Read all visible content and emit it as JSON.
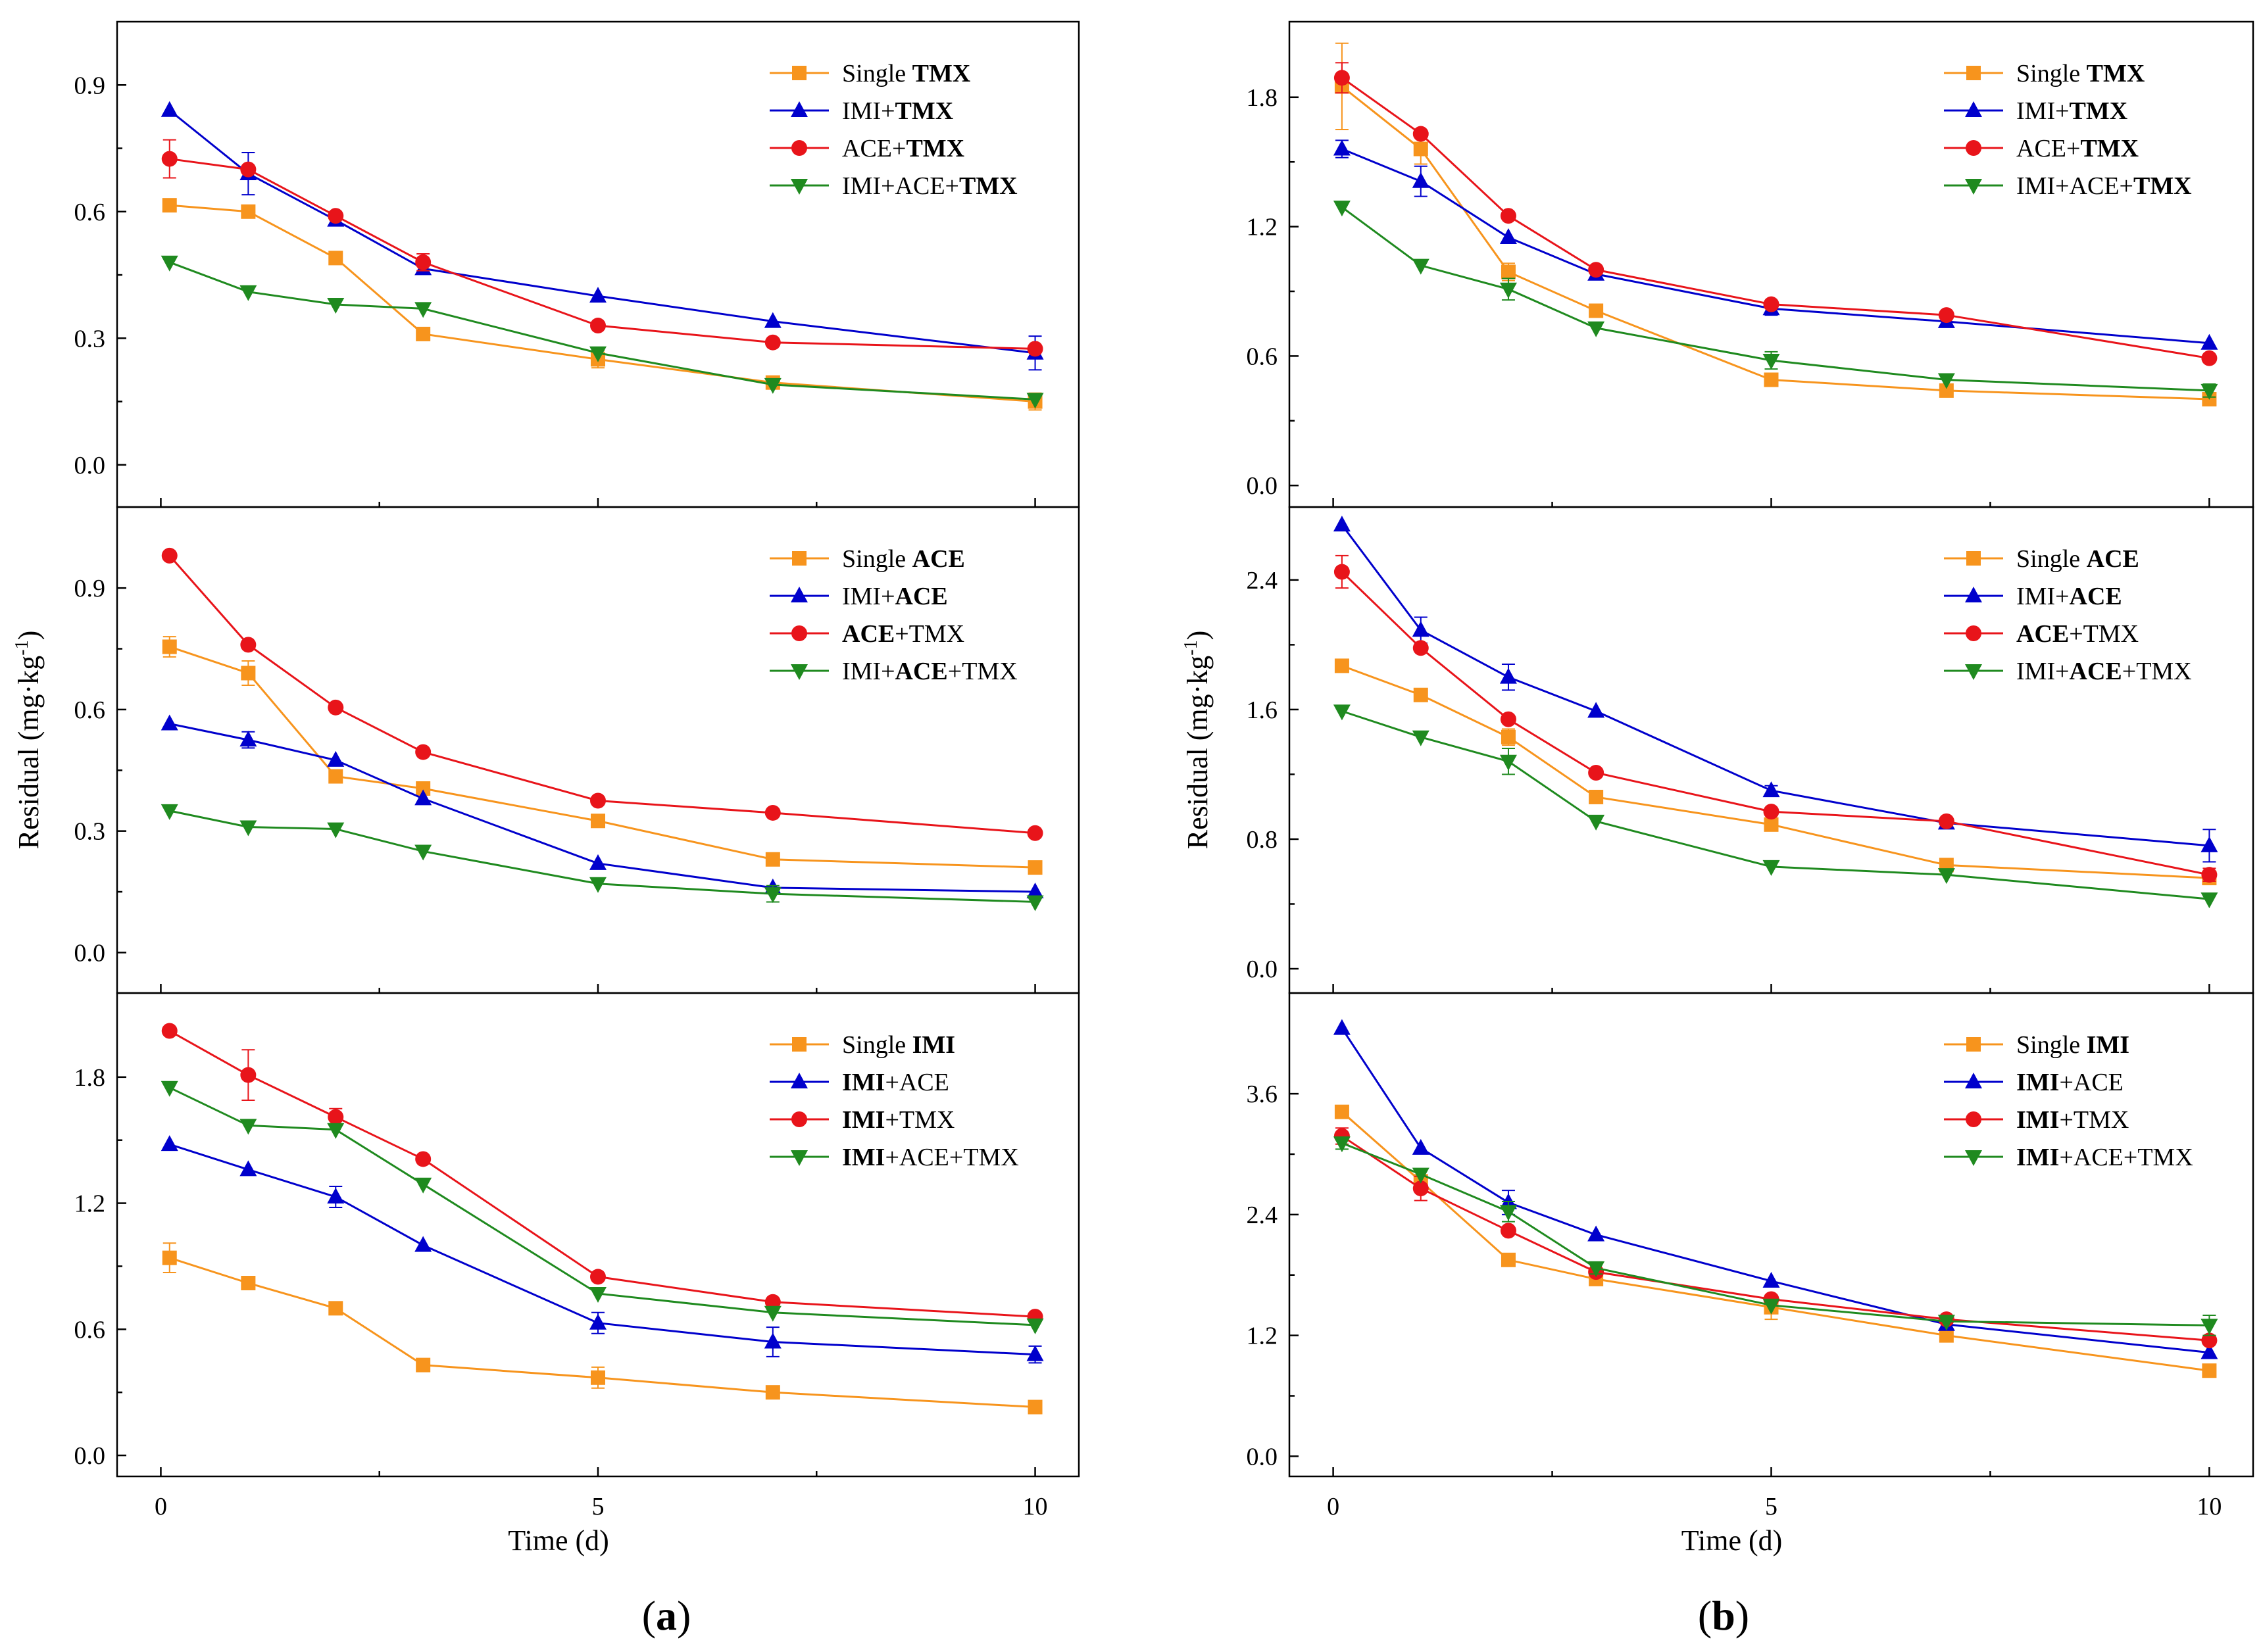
{
  "figure_labels": {
    "a": "a",
    "b": "b",
    "paren_open": "(",
    "paren_close": ")"
  },
  "chart_data": [
    {
      "type": "line",
      "id": "a-top",
      "column": "a",
      "row": 0,
      "xlabel": "",
      "ylabel": "",
      "xlim": [
        -0.5,
        10.5
      ],
      "xticks": [
        0,
        5,
        10
      ],
      "ylim": [
        -0.1,
        1.05
      ],
      "yticks": [
        "0.0",
        "0.3",
        "0.6",
        "0.9"
      ],
      "legend_position": "top-right",
      "x": [
        0.1,
        1,
        2,
        3,
        5,
        7,
        10
      ],
      "series": [
        {
          "name": "Single TMX",
          "legend": [
            [
              "Single ",
              false
            ],
            [
              "TMX",
              true
            ]
          ],
          "color": "#f7941d",
          "marker": "square",
          "values": [
            0.615,
            0.6,
            0.49,
            0.31,
            0.25,
            0.195,
            0.15
          ],
          "errors": [
            0,
            0,
            0,
            0,
            0.02,
            0.01,
            0.02
          ]
        },
        {
          "name": "IMI+TMX",
          "legend": [
            [
              "IMI+",
              false
            ],
            [
              "TMX",
              true
            ]
          ],
          "color": "#0000cc",
          "marker": "triangle-up",
          "values": [
            0.84,
            0.69,
            0.58,
            0.465,
            0.4,
            0.34,
            0.265
          ],
          "errors": [
            0,
            0.05,
            0,
            0,
            0,
            0,
            0.04
          ]
        },
        {
          "name": "ACE+TMX",
          "legend": [
            [
              "ACE+",
              false
            ],
            [
              "TMX",
              true
            ]
          ],
          "color": "#e8141a",
          "marker": "circle",
          "values": [
            0.725,
            0.7,
            0.59,
            0.48,
            0.33,
            0.29,
            0.275
          ],
          "errors": [
            0.045,
            0,
            0,
            0.02,
            0,
            0,
            0
          ]
        },
        {
          "name": "IMI+ACE+TMX",
          "legend": [
            [
              "IMI+ACE+",
              false
            ],
            [
              "TMX",
              true
            ]
          ],
          "color": "#1f8a1f",
          "marker": "triangle-down",
          "values": [
            0.48,
            0.41,
            0.38,
            0.37,
            0.265,
            0.19,
            0.155
          ],
          "errors": [
            0,
            0,
            0,
            0,
            0,
            0,
            0
          ]
        }
      ]
    },
    {
      "type": "line",
      "id": "a-mid",
      "column": "a",
      "row": 1,
      "xlabel": "",
      "ylabel": "",
      "xlim": [
        -0.5,
        10.5
      ],
      "xticks": [
        0,
        5,
        10
      ],
      "ylim": [
        -0.1,
        1.1
      ],
      "yticks": [
        "0.0",
        "0.3",
        "0.6",
        "0.9"
      ],
      "legend_position": "top-right",
      "x": [
        0.1,
        1,
        2,
        3,
        5,
        7,
        10
      ],
      "series": [
        {
          "name": "Single ACE",
          "legend": [
            [
              "Single ",
              false
            ],
            [
              "ACE",
              true
            ]
          ],
          "color": "#f7941d",
          "marker": "square",
          "values": [
            0.755,
            0.69,
            0.435,
            0.405,
            0.325,
            0.23,
            0.21
          ],
          "errors": [
            0.025,
            0.03,
            0,
            0,
            0,
            0,
            0
          ]
        },
        {
          "name": "IMI+ACE",
          "legend": [
            [
              "IMI+",
              false
            ],
            [
              "ACE",
              true
            ]
          ],
          "color": "#0000cc",
          "marker": "triangle-up",
          "values": [
            0.565,
            0.525,
            0.475,
            0.38,
            0.22,
            0.16,
            0.15
          ],
          "errors": [
            0,
            0.02,
            0,
            0,
            0,
            0,
            0
          ]
        },
        {
          "name": "ACE+TMX",
          "legend": [
            [
              "ACE",
              true
            ],
            [
              "+TMX",
              false
            ]
          ],
          "color": "#e8141a",
          "marker": "circle",
          "values": [
            0.98,
            0.76,
            0.605,
            0.495,
            0.375,
            0.345,
            0.295
          ],
          "errors": [
            0,
            0,
            0,
            0,
            0,
            0,
            0
          ]
        },
        {
          "name": "IMI+ACE+TMX",
          "legend": [
            [
              "IMI+",
              false
            ],
            [
              "ACE",
              true
            ],
            [
              "+TMX",
              false
            ]
          ],
          "color": "#1f8a1f",
          "marker": "triangle-down",
          "values": [
            0.35,
            0.31,
            0.305,
            0.25,
            0.17,
            0.145,
            0.125
          ],
          "errors": [
            0,
            0,
            0,
            0,
            0,
            0.02,
            0
          ]
        }
      ]
    },
    {
      "type": "line",
      "id": "a-bot",
      "column": "a",
      "row": 2,
      "xlabel": "Time (d)",
      "ylabel": "",
      "xlim": [
        -0.5,
        10.5
      ],
      "xticks": [
        0,
        5,
        10
      ],
      "ylim": [
        -0.1,
        2.2
      ],
      "yticks": [
        "0.0",
        "0.6",
        "1.2",
        "1.8"
      ],
      "legend_position": "top-right",
      "x": [
        0.1,
        1,
        2,
        3,
        5,
        7,
        10
      ],
      "series": [
        {
          "name": "Single IMI",
          "legend": [
            [
              "Single ",
              false
            ],
            [
              "IMI",
              true
            ]
          ],
          "color": "#f7941d",
          "marker": "square",
          "values": [
            0.94,
            0.82,
            0.7,
            0.43,
            0.37,
            0.3,
            0.23
          ],
          "errors": [
            0.07,
            0,
            0,
            0,
            0.05,
            0,
            0
          ]
        },
        {
          "name": "IMI+ACE",
          "legend": [
            [
              "IMI",
              true
            ],
            [
              "+ACE",
              false
            ]
          ],
          "color": "#0000cc",
          "marker": "triangle-up",
          "values": [
            1.48,
            1.36,
            1.23,
            1.0,
            0.63,
            0.54,
            0.48
          ],
          "errors": [
            0,
            0,
            0.05,
            0,
            0.05,
            0.07,
            0.04
          ]
        },
        {
          "name": "IMI+TMX",
          "legend": [
            [
              "IMI",
              true
            ],
            [
              "+TMX",
              false
            ]
          ],
          "color": "#e8141a",
          "marker": "circle",
          "values": [
            2.02,
            1.81,
            1.61,
            1.41,
            0.85,
            0.73,
            0.66
          ],
          "errors": [
            0,
            0.12,
            0.04,
            0,
            0,
            0,
            0
          ]
        },
        {
          "name": "IMI+ACE+TMX",
          "legend": [
            [
              "IMI",
              true
            ],
            [
              "+ACE+TMX",
              false
            ]
          ],
          "color": "#1f8a1f",
          "marker": "triangle-down",
          "values": [
            1.75,
            1.57,
            1.55,
            1.29,
            0.77,
            0.68,
            0.62
          ],
          "errors": [
            0,
            0,
            0,
            0,
            0,
            0,
            0
          ]
        }
      ]
    },
    {
      "type": "line",
      "id": "b-top",
      "column": "b",
      "row": 0,
      "xlabel": "",
      "ylabel": "",
      "xlim": [
        -0.5,
        10.5
      ],
      "xticks": [
        0,
        5,
        10
      ],
      "ylim": [
        -0.1,
        2.15
      ],
      "yticks": [
        "0.0",
        "0.6",
        "1.2",
        "1.8"
      ],
      "legend_position": "top-right",
      "x": [
        0.1,
        1,
        2,
        3,
        5,
        7,
        10
      ],
      "series": [
        {
          "name": "Single TMX",
          "legend": [
            [
              "Single ",
              false
            ],
            [
              "TMX",
              true
            ]
          ],
          "color": "#f7941d",
          "marker": "square",
          "values": [
            1.85,
            1.56,
            0.99,
            0.81,
            0.49,
            0.44,
            0.4
          ],
          "errors": [
            0.2,
            0.07,
            0.04,
            0,
            0,
            0,
            0
          ]
        },
        {
          "name": "IMI+TMX",
          "legend": [
            [
              "IMI+",
              false
            ],
            [
              "TMX",
              true
            ]
          ],
          "color": "#0000cc",
          "marker": "triangle-up",
          "values": [
            1.56,
            1.41,
            1.15,
            0.98,
            0.82,
            0.76,
            0.66
          ],
          "errors": [
            0.04,
            0.07,
            0,
            0,
            0.03,
            0,
            0
          ]
        },
        {
          "name": "ACE+TMX",
          "legend": [
            [
              "ACE+",
              false
            ],
            [
              "TMX",
              true
            ]
          ],
          "color": "#e8141a",
          "marker": "circle",
          "values": [
            1.89,
            1.63,
            1.25,
            1.0,
            0.84,
            0.79,
            0.59
          ],
          "errors": [
            0.07,
            0,
            0,
            0,
            0,
            0,
            0
          ]
        },
        {
          "name": "IMI+ACE+TMX",
          "legend": [
            [
              "IMI+ACE+",
              false
            ],
            [
              "TMX",
              true
            ]
          ],
          "color": "#1f8a1f",
          "marker": "triangle-down",
          "values": [
            1.29,
            1.02,
            0.91,
            0.73,
            0.58,
            0.49,
            0.44
          ],
          "errors": [
            0,
            0,
            0.05,
            0,
            0.04,
            0,
            0.03
          ]
        }
      ]
    },
    {
      "type": "line",
      "id": "b-mid",
      "column": "b",
      "row": 1,
      "xlabel": "",
      "ylabel": "",
      "xlim": [
        -0.5,
        10.5
      ],
      "xticks": [
        0,
        5,
        10
      ],
      "ylim": [
        -0.15,
        2.85
      ],
      "yticks": [
        "0.0",
        "0.8",
        "1.6",
        "2.4"
      ],
      "legend_position": "top-right",
      "x": [
        0.1,
        1,
        2,
        3,
        5,
        7,
        10
      ],
      "series": [
        {
          "name": "Single ACE",
          "legend": [
            [
              "Single ",
              false
            ],
            [
              "ACE",
              true
            ]
          ],
          "color": "#f7941d",
          "marker": "square",
          "values": [
            1.87,
            1.69,
            1.43,
            1.06,
            0.89,
            0.64,
            0.56
          ],
          "errors": [
            0,
            0,
            0.05,
            0,
            0,
            0,
            0
          ]
        },
        {
          "name": "IMI+ACE",
          "legend": [
            [
              "IMI+",
              false
            ],
            [
              "ACE",
              true
            ]
          ],
          "color": "#0000cc",
          "marker": "triangle-up",
          "values": [
            2.74,
            2.09,
            1.8,
            1.59,
            1.1,
            0.9,
            0.76
          ],
          "errors": [
            0,
            0.08,
            0.08,
            0,
            0.03,
            0,
            0.1
          ]
        },
        {
          "name": "ACE+TMX",
          "legend": [
            [
              "ACE",
              true
            ],
            [
              "+TMX",
              false
            ]
          ],
          "color": "#e8141a",
          "marker": "circle",
          "values": [
            2.45,
            1.98,
            1.54,
            1.21,
            0.97,
            0.91,
            0.58
          ],
          "errors": [
            0.1,
            0,
            0,
            0,
            0,
            0,
            0.04
          ]
        },
        {
          "name": "IMI+ACE+TMX",
          "legend": [
            [
              "IMI+",
              false
            ],
            [
              "ACE",
              true
            ],
            [
              "+TMX",
              false
            ]
          ],
          "color": "#1f8a1f",
          "marker": "triangle-down",
          "values": [
            1.59,
            1.43,
            1.28,
            0.91,
            0.63,
            0.58,
            0.43
          ],
          "errors": [
            0,
            0,
            0.08,
            0,
            0,
            0,
            0
          ]
        }
      ]
    },
    {
      "type": "line",
      "id": "b-bot",
      "column": "b",
      "row": 2,
      "xlabel": "Time (d)",
      "ylabel": "",
      "xlim": [
        -0.5,
        10.5
      ],
      "xticks": [
        0,
        5,
        10
      ],
      "ylim": [
        -0.2,
        4.6
      ],
      "yticks": [
        "0.0",
        "1.2",
        "2.4",
        "3.6"
      ],
      "legend_position": "top-right",
      "x": [
        0.1,
        1,
        2,
        3,
        5,
        7,
        10
      ],
      "series": [
        {
          "name": "Single IMI",
          "legend": [
            [
              "Single ",
              false
            ],
            [
              "IMI",
              true
            ]
          ],
          "color": "#f7941d",
          "marker": "square",
          "values": [
            3.42,
            2.73,
            1.95,
            1.76,
            1.48,
            1.2,
            0.85
          ],
          "errors": [
            0,
            0,
            0,
            0,
            0.12,
            0,
            0
          ]
        },
        {
          "name": "IMI+ACE",
          "legend": [
            [
              "IMI",
              true
            ],
            [
              "+ACE",
              false
            ]
          ],
          "color": "#0000cc",
          "marker": "triangle-up",
          "values": [
            4.25,
            3.06,
            2.52,
            2.2,
            1.74,
            1.31,
            1.03
          ],
          "errors": [
            0,
            0,
            0.12,
            0,
            0,
            0,
            0
          ]
        },
        {
          "name": "IMI+TMX",
          "legend": [
            [
              "IMI",
              true
            ],
            [
              "+TMX",
              false
            ]
          ],
          "color": "#e8141a",
          "marker": "circle",
          "values": [
            3.18,
            2.66,
            2.24,
            1.83,
            1.56,
            1.36,
            1.15
          ],
          "errors": [
            0.08,
            0.12,
            0,
            0,
            0,
            0,
            0
          ]
        },
        {
          "name": "IMI+ACE+TMX",
          "legend": [
            [
              "IMI",
              true
            ],
            [
              "+ACE+TMX",
              false
            ]
          ],
          "color": "#1f8a1f",
          "marker": "triangle-down",
          "values": [
            3.11,
            2.8,
            2.43,
            1.87,
            1.5,
            1.34,
            1.3
          ],
          "errors": [
            0.06,
            0,
            0.1,
            0.06,
            0,
            0,
            0.1
          ]
        }
      ]
    }
  ],
  "ylabels": {
    "a": {
      "text": "Residual (mg",
      "dot": "·",
      "unit": "kg",
      "sup": "-1",
      "close": ")"
    },
    "b": {
      "text": "Residual (mg",
      "dot": "·",
      "unit": "kg",
      "sup": "-1",
      "close": ")"
    }
  }
}
